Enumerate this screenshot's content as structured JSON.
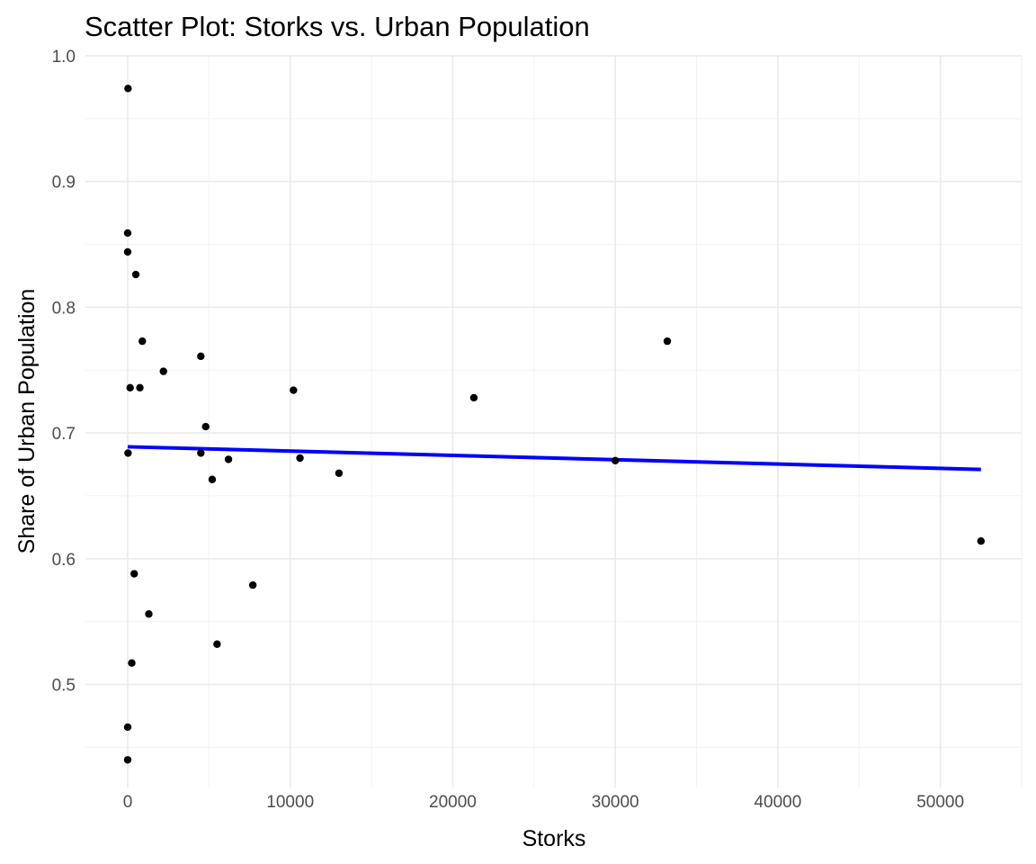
{
  "chart_data": {
    "type": "scatter",
    "title": "Scatter Plot: Storks vs. Urban Population",
    "xlabel": "Storks",
    "ylabel": "Share of Urban Population",
    "xlim": [
      -2600,
      55000
    ],
    "ylim": [
      0.418,
      1.0
    ],
    "x_ticks": [
      0,
      10000,
      20000,
      30000,
      40000,
      50000
    ],
    "y_ticks": [
      0.5,
      0.6,
      0.7,
      0.8,
      0.9,
      1.0
    ],
    "grid": true,
    "legend": "none",
    "points": [
      {
        "x": 20,
        "y": 0.974
      },
      {
        "x": 0,
        "y": 0.859
      },
      {
        "x": 0,
        "y": 0.844
      },
      {
        "x": 500,
        "y": 0.826
      },
      {
        "x": 900,
        "y": 0.773
      },
      {
        "x": 2200,
        "y": 0.749
      },
      {
        "x": 4500,
        "y": 0.761
      },
      {
        "x": 150,
        "y": 0.736
      },
      {
        "x": 750,
        "y": 0.736
      },
      {
        "x": 4800,
        "y": 0.705
      },
      {
        "x": 10200,
        "y": 0.734
      },
      {
        "x": 21300,
        "y": 0.728
      },
      {
        "x": 33200,
        "y": 0.773
      },
      {
        "x": 20,
        "y": 0.684
      },
      {
        "x": 4500,
        "y": 0.684
      },
      {
        "x": 6200,
        "y": 0.679
      },
      {
        "x": 10600,
        "y": 0.68
      },
      {
        "x": 5200,
        "y": 0.663
      },
      {
        "x": 13000,
        "y": 0.668
      },
      {
        "x": 30000,
        "y": 0.678
      },
      {
        "x": 52500,
        "y": 0.614
      },
      {
        "x": 400,
        "y": 0.588
      },
      {
        "x": 7700,
        "y": 0.579
      },
      {
        "x": 1300,
        "y": 0.556
      },
      {
        "x": 5500,
        "y": 0.532
      },
      {
        "x": 250,
        "y": 0.517
      },
      {
        "x": 0,
        "y": 0.466
      },
      {
        "x": 0,
        "y": 0.44
      }
    ],
    "trendline": {
      "color": "#0000ff",
      "x": [
        0,
        52500
      ],
      "y": [
        0.689,
        0.671
      ]
    }
  }
}
